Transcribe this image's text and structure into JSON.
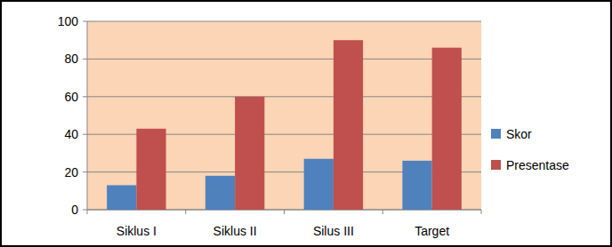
{
  "chart_data": {
    "type": "bar",
    "categories": [
      "Siklus I",
      "Siklus II",
      "Silus III",
      "Target"
    ],
    "series": [
      {
        "name": "Skor",
        "color": "#4f81bd",
        "values": [
          13,
          18,
          27,
          26
        ]
      },
      {
        "name": "Presentase",
        "color": "#c0504d",
        "values": [
          43,
          60,
          90,
          86
        ]
      }
    ],
    "ylim": [
      0,
      100
    ],
    "yticks": [
      0,
      20,
      40,
      60,
      80,
      100
    ],
    "grid": true,
    "legend": "right"
  }
}
